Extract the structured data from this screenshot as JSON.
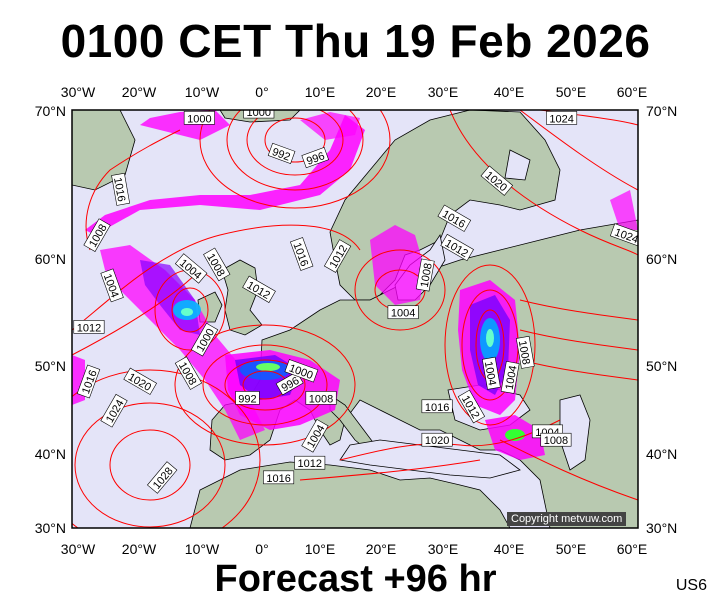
{
  "title": "0100 CET Thu 19 Feb 2026",
  "footer": "Forecast +96 hr",
  "model": "US6",
  "copyright": "Copyright metvuw.com",
  "lon_labels": [
    "30°W",
    "20°W",
    "10°W",
    "0°",
    "10°E",
    "20°E",
    "30°E",
    "40°E",
    "50°E",
    "60°E"
  ],
  "lat_labels": [
    "70°N",
    "60°N",
    "50°N",
    "40°N",
    "30°N"
  ],
  "isobar_labels": [
    {
      "text": "1000",
      "mx": 0.225,
      "my": 0.02,
      "r": 0
    },
    {
      "text": "1000",
      "mx": 0.33,
      "my": 0.005,
      "r": 0
    },
    {
      "text": "992",
      "mx": 0.37,
      "my": 0.105,
      "r": 20
    },
    {
      "text": "996",
      "mx": 0.43,
      "my": 0.115,
      "r": -20
    },
    {
      "text": "1016",
      "mx": 0.085,
      "my": 0.19,
      "r": 80
    },
    {
      "text": "1008",
      "mx": 0.045,
      "my": 0.3,
      "r": -60
    },
    {
      "text": "1004",
      "mx": 0.07,
      "my": 0.42,
      "r": 70
    },
    {
      "text": "1012",
      "mx": 0.03,
      "my": 0.52,
      "r": 0
    },
    {
      "text": "1016",
      "mx": 0.03,
      "my": 0.65,
      "r": -70
    },
    {
      "text": "1020",
      "mx": 0.12,
      "my": 0.65,
      "r": 30
    },
    {
      "text": "1024",
      "mx": 0.075,
      "my": 0.72,
      "r": -60
    },
    {
      "text": "1028",
      "mx": 0.16,
      "my": 0.88,
      "r": -50
    },
    {
      "text": "1004",
      "mx": 0.21,
      "my": 0.38,
      "r": 40
    },
    {
      "text": "1008",
      "mx": 0.255,
      "my": 0.37,
      "r": 60
    },
    {
      "text": "1012",
      "mx": 0.33,
      "my": 0.43,
      "r": 30
    },
    {
      "text": "1000",
      "mx": 0.235,
      "my": 0.55,
      "r": -60
    },
    {
      "text": "1008",
      "mx": 0.205,
      "my": 0.63,
      "r": 60
    },
    {
      "text": "992",
      "mx": 0.31,
      "my": 0.69,
      "r": 0
    },
    {
      "text": "996",
      "mx": 0.385,
      "my": 0.655,
      "r": -30
    },
    {
      "text": "1000",
      "mx": 0.405,
      "my": 0.625,
      "r": 20
    },
    {
      "text": "1008",
      "mx": 0.44,
      "my": 0.69,
      "r": 0
    },
    {
      "text": "1004",
      "mx": 0.43,
      "my": 0.78,
      "r": -60
    },
    {
      "text": "1012",
      "mx": 0.42,
      "my": 0.845,
      "r": 0
    },
    {
      "text": "1016",
      "mx": 0.365,
      "my": 0.88,
      "r": 0
    },
    {
      "text": "1016",
      "mx": 0.405,
      "my": 0.345,
      "r": 70
    },
    {
      "text": "1012",
      "mx": 0.47,
      "my": 0.35,
      "r": -60
    },
    {
      "text": "1004",
      "mx": 0.585,
      "my": 0.485,
      "r": 0
    },
    {
      "text": "1008",
      "mx": 0.625,
      "my": 0.395,
      "r": -80
    },
    {
      "text": "1016",
      "mx": 0.675,
      "my": 0.26,
      "r": 30
    },
    {
      "text": "1012",
      "mx": 0.68,
      "my": 0.33,
      "r": 30
    },
    {
      "text": "1020",
      "mx": 0.75,
      "my": 0.17,
      "r": 40
    },
    {
      "text": "1024",
      "mx": 0.865,
      "my": 0.02,
      "r": 0
    },
    {
      "text": "1024",
      "mx": 0.98,
      "my": 0.3,
      "r": 20
    },
    {
      "text": "1008",
      "mx": 0.8,
      "my": 0.58,
      "r": 80
    },
    {
      "text": "1004",
      "mx": 0.74,
      "my": 0.63,
      "r": 80
    },
    {
      "text": "1004",
      "mx": 0.775,
      "my": 0.64,
      "r": -80
    },
    {
      "text": "1012",
      "mx": 0.705,
      "my": 0.71,
      "r": 60
    },
    {
      "text": "1016",
      "mx": 0.645,
      "my": 0.71,
      "r": 0
    },
    {
      "text": "1020",
      "mx": 0.645,
      "my": 0.79,
      "r": 0
    },
    {
      "text": "1004",
      "mx": 0.84,
      "my": 0.77,
      "r": 0
    },
    {
      "text": "1008",
      "mx": 0.855,
      "my": 0.79,
      "r": 0
    }
  ]
}
